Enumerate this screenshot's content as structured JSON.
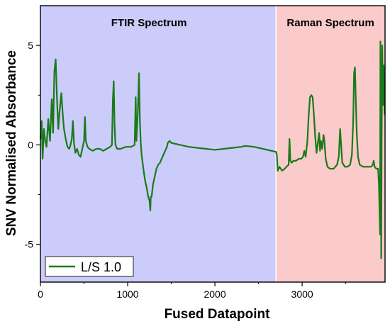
{
  "chart_data": {
    "type": "line",
    "xlabel": "Fused Datapoint",
    "ylabel": "SNV Normalised Absorbance",
    "xlim": [
      0,
      3950
    ],
    "ylim": [
      -6.9,
      7.0
    ],
    "x_ticks": [
      0,
      1000,
      2000,
      3000
    ],
    "y_ticks": [
      -5,
      0,
      5
    ],
    "grid": false,
    "legend_position": "bottom-left",
    "regions": [
      {
        "label": "FTIR Spectrum",
        "x_start": 0,
        "x_end": 2700,
        "color": "#ccccfa"
      },
      {
        "label": "Raman Spectrum",
        "x_start": 2700,
        "x_end": 3950,
        "color": "#fbcaca"
      }
    ],
    "series": [
      {
        "name": "L/S 1.0",
        "color": "#1a7a1a",
        "points": [
          [
            0,
            0.3
          ],
          [
            15,
            1.2
          ],
          [
            25,
            -0.7
          ],
          [
            40,
            0.8
          ],
          [
            55,
            0.2
          ],
          [
            70,
            -0.1
          ],
          [
            90,
            1.3
          ],
          [
            110,
            0.2
          ],
          [
            130,
            2.3
          ],
          [
            145,
            0.6
          ],
          [
            160,
            3.7
          ],
          [
            175,
            4.3
          ],
          [
            190,
            2.3
          ],
          [
            205,
            0.8
          ],
          [
            220,
            1.7
          ],
          [
            240,
            2.6
          ],
          [
            255,
            1.6
          ],
          [
            270,
            0.8
          ],
          [
            290,
            0.3
          ],
          [
            310,
            -0.1
          ],
          [
            330,
            -0.2
          ],
          [
            345,
            0.0
          ],
          [
            360,
            0.3
          ],
          [
            372,
            1.2
          ],
          [
            385,
            0.1
          ],
          [
            400,
            -0.4
          ],
          [
            420,
            -0.2
          ],
          [
            440,
            -0.5
          ],
          [
            460,
            -0.6
          ],
          [
            480,
            -0.2
          ],
          [
            500,
            0.2
          ],
          [
            510,
            1.4
          ],
          [
            520,
            0.2
          ],
          [
            540,
            -0.1
          ],
          [
            560,
            -0.2
          ],
          [
            600,
            -0.3
          ],
          [
            640,
            -0.2
          ],
          [
            680,
            -0.2
          ],
          [
            720,
            -0.3
          ],
          [
            760,
            -0.2
          ],
          [
            800,
            -0.1
          ],
          [
            820,
            0.0
          ],
          [
            830,
            2.2
          ],
          [
            840,
            3.2
          ],
          [
            850,
            1.0
          ],
          [
            860,
            0.0
          ],
          [
            880,
            -0.2
          ],
          [
            920,
            -0.2
          ],
          [
            980,
            -0.1
          ],
          [
            1040,
            -0.1
          ],
          [
            1080,
            0.0
          ],
          [
            1092,
            2.4
          ],
          [
            1100,
            0.2
          ],
          [
            1115,
            1.5
          ],
          [
            1130,
            3.6
          ],
          [
            1140,
            1.2
          ],
          [
            1150,
            0.1
          ],
          [
            1160,
            -0.5
          ],
          [
            1180,
            -1.2
          ],
          [
            1200,
            -1.8
          ],
          [
            1220,
            -2.2
          ],
          [
            1235,
            -2.6
          ],
          [
            1250,
            -2.8
          ],
          [
            1260,
            -3.3
          ],
          [
            1265,
            -2.6
          ],
          [
            1275,
            -2.6
          ],
          [
            1290,
            -2.0
          ],
          [
            1310,
            -1.6
          ],
          [
            1330,
            -1.2
          ],
          [
            1350,
            -1.0
          ],
          [
            1370,
            -0.9
          ],
          [
            1390,
            -0.7
          ],
          [
            1410,
            -0.5
          ],
          [
            1430,
            -0.3
          ],
          [
            1450,
            -0.1
          ],
          [
            1460,
            0.1
          ],
          [
            1480,
            0.2
          ],
          [
            1500,
            0.1
          ],
          [
            1550,
            0.05
          ],
          [
            1600,
            0.0
          ],
          [
            1700,
            -0.1
          ],
          [
            1800,
            -0.15
          ],
          [
            1900,
            -0.2
          ],
          [
            2000,
            -0.25
          ],
          [
            2100,
            -0.2
          ],
          [
            2200,
            -0.15
          ],
          [
            2300,
            -0.1
          ],
          [
            2350,
            -0.05
          ],
          [
            2450,
            -0.1
          ],
          [
            2550,
            -0.2
          ],
          [
            2650,
            -0.3
          ],
          [
            2700,
            -0.35
          ],
          [
            2710,
            -0.5
          ],
          [
            2720,
            -1.3
          ],
          [
            2740,
            -1.1
          ],
          [
            2770,
            -1.3
          ],
          [
            2800,
            -1.2
          ],
          [
            2820,
            -1.1
          ],
          [
            2845,
            -1.0
          ],
          [
            2855,
            0.3
          ],
          [
            2865,
            -0.8
          ],
          [
            2880,
            -0.9
          ],
          [
            2900,
            -0.8
          ],
          [
            2930,
            -0.8
          ],
          [
            2960,
            -0.7
          ],
          [
            2990,
            -0.7
          ],
          [
            3010,
            -0.6
          ],
          [
            3025,
            -0.3
          ],
          [
            3040,
            -0.6
          ],
          [
            3060,
            0.2
          ],
          [
            3075,
            1.5
          ],
          [
            3090,
            2.4
          ],
          [
            3105,
            2.5
          ],
          [
            3120,
            2.4
          ],
          [
            3135,
            1.5
          ],
          [
            3150,
            0.4
          ],
          [
            3165,
            -0.4
          ],
          [
            3180,
            0.1
          ],
          [
            3195,
            0.6
          ],
          [
            3205,
            -0.3
          ],
          [
            3215,
            0.2
          ],
          [
            3230,
            -0.2
          ],
          [
            3245,
            0.5
          ],
          [
            3255,
            0.2
          ],
          [
            3270,
            -0.7
          ],
          [
            3290,
            -1.1
          ],
          [
            3320,
            -1.2
          ],
          [
            3360,
            -1.2
          ],
          [
            3400,
            -1.0
          ],
          [
            3420,
            -0.6
          ],
          [
            3435,
            0.8
          ],
          [
            3445,
            0.1
          ],
          [
            3460,
            -0.9
          ],
          [
            3490,
            -1.1
          ],
          [
            3520,
            -1.1
          ],
          [
            3550,
            -1.0
          ],
          [
            3570,
            -0.5
          ],
          [
            3585,
            1.2
          ],
          [
            3595,
            3.6
          ],
          [
            3605,
            3.9
          ],
          [
            3615,
            2.3
          ],
          [
            3625,
            0.7
          ],
          [
            3640,
            -0.6
          ],
          [
            3660,
            -1.0
          ],
          [
            3700,
            -1.1
          ],
          [
            3750,
            -1.1
          ],
          [
            3790,
            -1.1
          ],
          [
            3810,
            -1.0
          ],
          [
            3820,
            -0.8
          ],
          [
            3830,
            -1.1
          ],
          [
            3850,
            -1.2
          ],
          [
            3870,
            -1.2
          ],
          [
            3880,
            -2.0
          ],
          [
            3888,
            -3.5
          ],
          [
            3893,
            -4.5
          ],
          [
            3897,
            5.2
          ],
          [
            3902,
            2.0
          ],
          [
            3906,
            -5.7
          ],
          [
            3912,
            0.8
          ],
          [
            3918,
            5.0
          ],
          [
            3925,
            2.0
          ],
          [
            3935,
            4.0
          ],
          [
            3945,
            1.5
          ]
        ]
      }
    ]
  }
}
